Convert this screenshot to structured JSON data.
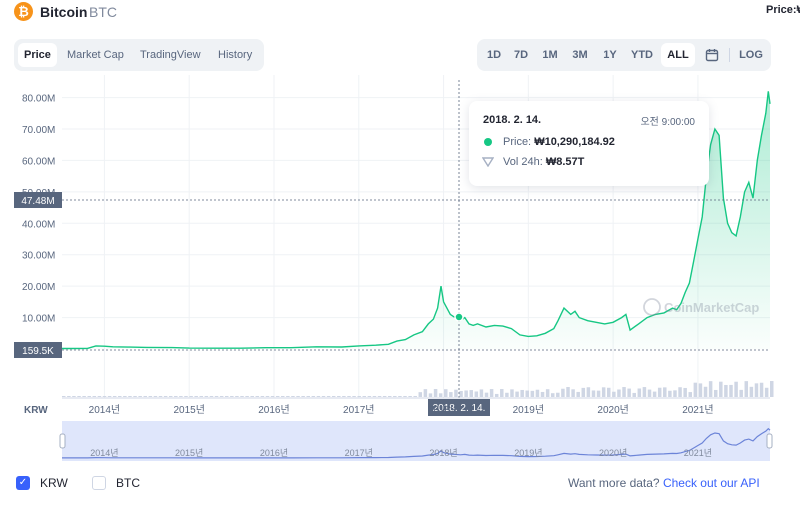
{
  "header": {
    "coin_icon": "bitcoin-icon",
    "coin_icon_glyph": "₿",
    "coin_name": "Bitcoin",
    "coin_symbol": "BTC",
    "price_label": "Price:₩"
  },
  "tabs_left": [
    "Price",
    "Market Cap",
    "TradingView",
    "History"
  ],
  "tabs_right": [
    "1D",
    "7D",
    "1M",
    "3M",
    "1Y",
    "YTD",
    "ALL",
    "LOG"
  ],
  "calendar_icon": "calendar-icon",
  "tooltip": {
    "date": "2018. 2. 14.",
    "time": "오전 9:00:00",
    "price_label": "Price:",
    "price_value": "₩10,290,184.92",
    "vol_label": "Vol 24h:",
    "vol_value": "₩8.57T"
  },
  "crosshair": {
    "y_label": "47.48M",
    "x_label": "2018. 2. 14.",
    "baseline_label": "159.5K"
  },
  "watermark": "CoinMarketCap",
  "colors": {
    "line": "#16c784",
    "accent": "#3861fb",
    "volume": "#cfd6e4",
    "navigator_line": "#6c84d8",
    "navigator_bg": "#dfe6fb"
  },
  "chart_data": {
    "type": "area",
    "currency_label": "KRW",
    "y_ticks": [
      "10.00M",
      "20.00M",
      "30.00M",
      "40.00M",
      "50.00M",
      "60.00M",
      "70.00M",
      "80.00M"
    ],
    "x_ticks": [
      "2014년",
      "2015년",
      "2016년",
      "2017년",
      "2018년",
      "2019년",
      "2020년",
      "2021년"
    ],
    "ylim": [
      0,
      84000000
    ],
    "x_range": [
      2013.5,
      2021.85
    ],
    "grid": true,
    "series": [
      {
        "values_x": [
          2013.5,
          2013.6,
          2013.8,
          2013.9,
          2014.0,
          2014.1,
          2014.3,
          2014.5,
          2014.8,
          2015.0,
          2015.3,
          2015.6,
          2015.9,
          2016.2,
          2016.5,
          2016.8,
          2017.0,
          2017.2,
          2017.35,
          2017.45,
          2017.55,
          2017.65,
          2017.75,
          2017.82,
          2017.88,
          2017.93,
          2017.97,
          2018.0,
          2018.04,
          2018.08,
          2018.12,
          2018.2,
          2018.25,
          2018.3,
          2018.35,
          2018.4,
          2018.5,
          2018.6,
          2018.7,
          2018.8,
          2018.9,
          2019.0,
          2019.1,
          2019.2,
          2019.3,
          2019.35,
          2019.42,
          2019.5,
          2019.55,
          2019.6,
          2019.7,
          2019.8,
          2019.9,
          2020.0,
          2020.1,
          2020.15,
          2020.2,
          2020.3,
          2020.4,
          2020.5,
          2020.6,
          2020.7,
          2020.75,
          2020.8,
          2020.85,
          2020.9,
          2020.95,
          2021.0,
          2021.05,
          2021.1,
          2021.15,
          2021.2,
          2021.25,
          2021.3,
          2021.35,
          2021.4,
          2021.45,
          2021.5,
          2021.55,
          2021.6,
          2021.65,
          2021.7,
          2021.75,
          2021.8,
          2021.83,
          2021.85
        ],
        "values_y": [
          159500,
          150000,
          200000,
          1000000,
          900000,
          700000,
          600000,
          500000,
          450000,
          300000,
          250000,
          270000,
          400000,
          420000,
          700000,
          650000,
          1000000,
          1200000,
          1500000,
          2500000,
          3000000,
          4500000,
          5500000,
          8000000,
          9500000,
          13000000,
          20000000,
          15000000,
          13000000,
          11000000,
          10290184,
          9000000,
          10000000,
          8000000,
          7500000,
          8000000,
          7000000,
          7500000,
          7300000,
          6500000,
          4500000,
          4000000,
          4200000,
          5000000,
          6500000,
          9000000,
          13000000,
          11000000,
          12000000,
          10000000,
          9000000,
          8500000,
          8000000,
          8500000,
          10000000,
          11000000,
          6000000,
          8000000,
          10000000,
          11000000,
          11500000,
          13000000,
          12500000,
          14500000,
          18000000,
          21000000,
          28000000,
          35000000,
          42000000,
          55000000,
          65000000,
          70000000,
          68000000,
          48000000,
          40000000,
          37000000,
          36000000,
          42000000,
          50000000,
          53000000,
          48000000,
          60000000,
          68000000,
          75000000,
          82000000,
          78000000
        ]
      }
    ]
  },
  "footer": {
    "krw_label": "KRW",
    "btc_label": "BTC",
    "api_prefix": "Want more data?",
    "api_link": "Check out our API"
  }
}
